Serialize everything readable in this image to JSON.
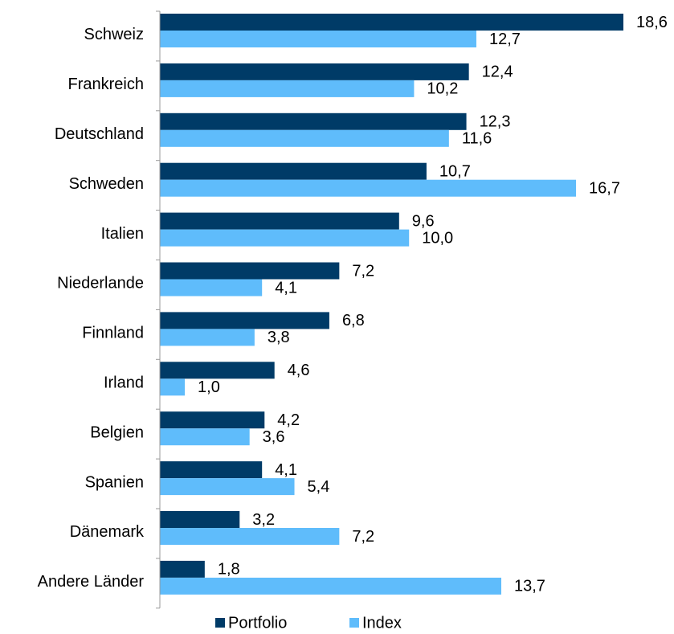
{
  "chart_data": {
    "type": "bar",
    "orientation": "horizontal",
    "categories": [
      "Schweiz",
      "Frankreich",
      "Deutschland",
      "Schweden",
      "Italien",
      "Niederlande",
      "Finnland",
      "Irland",
      "Belgien",
      "Spanien",
      "Dänemark",
      "Andere Länder"
    ],
    "series": [
      {
        "name": "Portfolio",
        "color": "#003b67",
        "values": [
          18.6,
          12.4,
          12.3,
          10.7,
          9.6,
          7.2,
          6.8,
          4.6,
          4.2,
          4.1,
          3.2,
          1.8
        ],
        "labels": [
          "18,6",
          "12,4",
          "12,3",
          "10,7",
          "9,6",
          "7,2",
          "6,8",
          "4,6",
          "4,2",
          "4,1",
          "3,2",
          "1,8"
        ]
      },
      {
        "name": "Index",
        "color": "#5fbcfb",
        "values": [
          12.7,
          10.2,
          11.6,
          16.7,
          10.0,
          4.1,
          3.8,
          1.0,
          3.6,
          5.4,
          7.2,
          13.7
        ],
        "labels": [
          "12,7",
          "10,2",
          "11,6",
          "16,7",
          "10,0",
          "4,1",
          "3,8",
          "1,0",
          "3,6",
          "5,4",
          "7,2",
          "13,7"
        ]
      }
    ],
    "xlim": [
      0,
      18.6
    ],
    "grid": false,
    "legend_position": "bottom"
  }
}
